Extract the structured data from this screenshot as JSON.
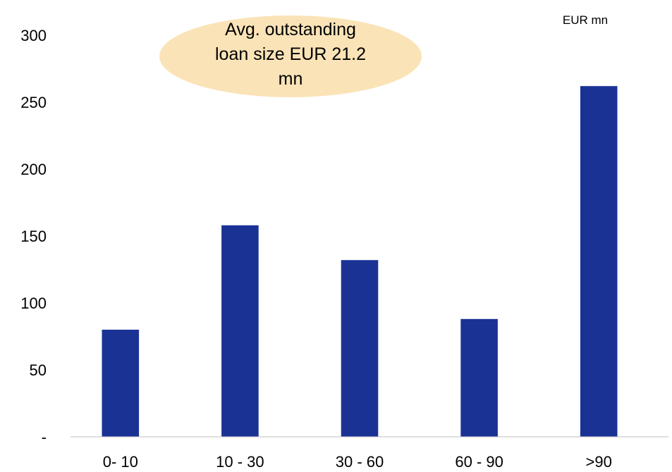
{
  "chart_data": {
    "type": "bar",
    "categories": [
      "0- 10",
      "10 - 30",
      "30 - 60",
      "60 - 90",
      ">90"
    ],
    "values": [
      80,
      158,
      132,
      88,
      262
    ],
    "y_ticks": [
      0,
      50,
      100,
      150,
      200,
      250,
      300
    ],
    "y_tick_labels": [
      "-",
      "50",
      "100",
      "150",
      "200",
      "250",
      "300"
    ],
    "ylim": [
      0,
      300
    ],
    "unit_label": "EUR mn",
    "annotation_lines": [
      "Avg. outstanding",
      "loan size EUR 21.2",
      "mn"
    ],
    "title": "",
    "xlabel": "",
    "ylabel": "",
    "grid": false,
    "legend": "none",
    "bar_color": "#1b3295",
    "annotation_fill": "#fae3b7",
    "axis_color": "#bfbfbf"
  }
}
